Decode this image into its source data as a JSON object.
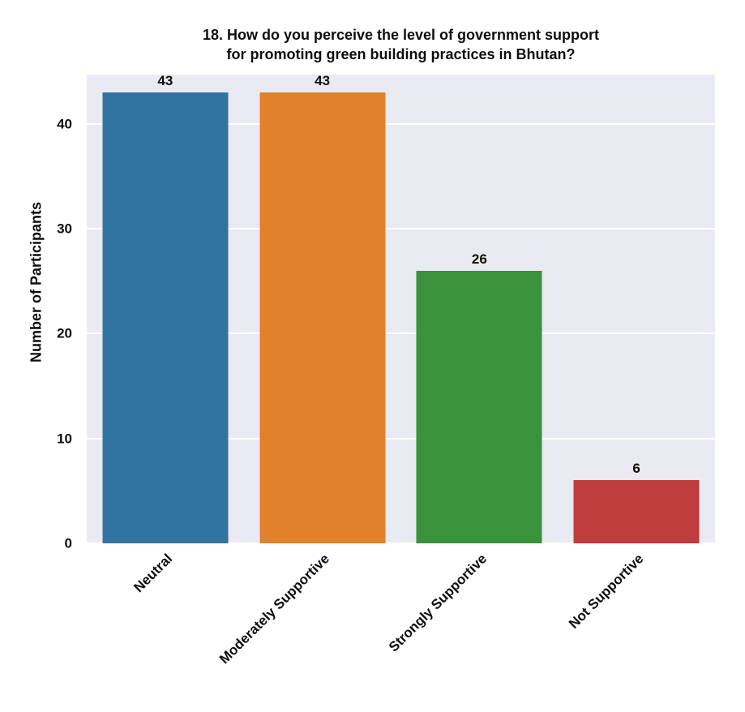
{
  "chart_data": {
    "type": "bar",
    "title": "18.  How do you perceive the level of government support\nfor promoting green building practices in Bhutan?",
    "categories": [
      "Neutral",
      "Moderately Supportive",
      "Strongly Supportive",
      "Not Supportive"
    ],
    "values": [
      43,
      43,
      26,
      6
    ],
    "xlabel": "",
    "ylabel": "Number of Participants",
    "ylim": [
      0,
      44.7
    ],
    "yticks": [
      0,
      10,
      20,
      30,
      40
    ],
    "bar_colors": [
      "#3274a1",
      "#e1812c",
      "#3a923a",
      "#c03d3e"
    ],
    "x_tick_rotation_deg": 45,
    "grid": true,
    "gridline_color": "#ffffff",
    "plot_background": "#eaeaf2",
    "legend": "none",
    "bar_width_fraction": 0.8
  }
}
